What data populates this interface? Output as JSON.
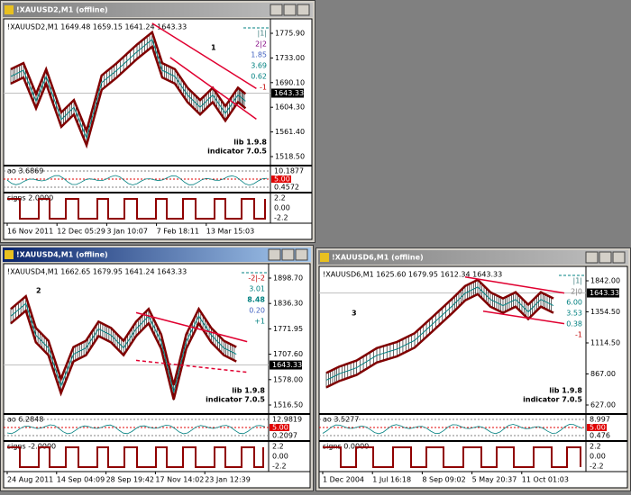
{
  "windows": [
    {
      "title": "!XAUUSD2,M1 (offline)",
      "header": "!XAUUSD2,M1  1649.48 1659.15 1641.24 1643.33",
      "price_labels": [
        "1775.90",
        "1733.00",
        "1690.10",
        "1604.30",
        "1561.40",
        "1518.50"
      ],
      "current_price": "1643.33",
      "overlay": [
        "|1|",
        "2|2",
        "1.85",
        "3.69",
        "0.62",
        "-1"
      ],
      "number": "1",
      "notes": [
        "lib 1.9.8",
        "indicator 7.0.5"
      ],
      "indicator": {
        "header": "ao 3.6869",
        "labels": [
          "10.1877",
          "5.00",
          "0.4572"
        ]
      },
      "signs": {
        "header": "signs 2.0000",
        "labels": [
          "2.2",
          "0.00",
          "-2.2"
        ]
      },
      "dates": [
        "16 Nov 2011",
        "12 Dec 05:29",
        "3 Jan 10:07",
        "7 Feb 18:11",
        "13 Mar 15:03"
      ]
    },
    {
      "title": "!XAUUSD4,M1 (offline)",
      "header": "!XAUUSD4,M1  1662.65 1679.95 1641.24 1643.33",
      "price_labels": [
        "1898.70",
        "1836.30",
        "1771.95",
        "1707.60",
        "1578.00",
        "1516.50"
      ],
      "current_price": "1643.33",
      "overlay": [
        "-2|-2",
        "3.01",
        "8.48",
        "0.20",
        "+1"
      ],
      "number": "2",
      "notes": [
        "lib 1.9.8",
        "indicator 7.0.5"
      ],
      "indicator": {
        "header": "ao 6.2848",
        "labels": [
          "12.9819",
          "5.00",
          "0.2097"
        ]
      },
      "signs": {
        "header": "signs -2.0000",
        "labels": [
          "2.2",
          "0.00",
          "-2.2"
        ]
      },
      "dates": [
        "24 Aug 2011",
        "14 Sep 04:09",
        "28 Sep 19:42",
        "17 Nov 14:02",
        "23 Jan 12:39"
      ]
    },
    {
      "title": "!XAUUSD6,M1 (offline)",
      "header": "!XAUUSD6,M1  1625.60 1679.95 1612.34 1643.33",
      "price_labels": [
        "1842.00",
        "1354.50",
        "1114.50",
        "867.00",
        "627.00"
      ],
      "current_price": "1643.33",
      "overlay": [
        "|1|",
        "2|0",
        "6.00",
        "3.53",
        "0.38",
        "-1"
      ],
      "number": "3",
      "notes": [
        "lib 1.9.8",
        "indicator 7.0.5"
      ],
      "indicator": {
        "header": "ao 3.5277",
        "labels": [
          "8.997",
          "5.00",
          "0.476"
        ]
      },
      "signs": {
        "header": "signs 0.0000",
        "labels": [
          "2.2",
          "0.00",
          "-2.2"
        ]
      },
      "dates": [
        "1 Dec 2004",
        "1 Jul 16:18",
        "8 Sep 09:02",
        "5 May 20:37",
        "11 Oct 01:03"
      ]
    }
  ]
}
